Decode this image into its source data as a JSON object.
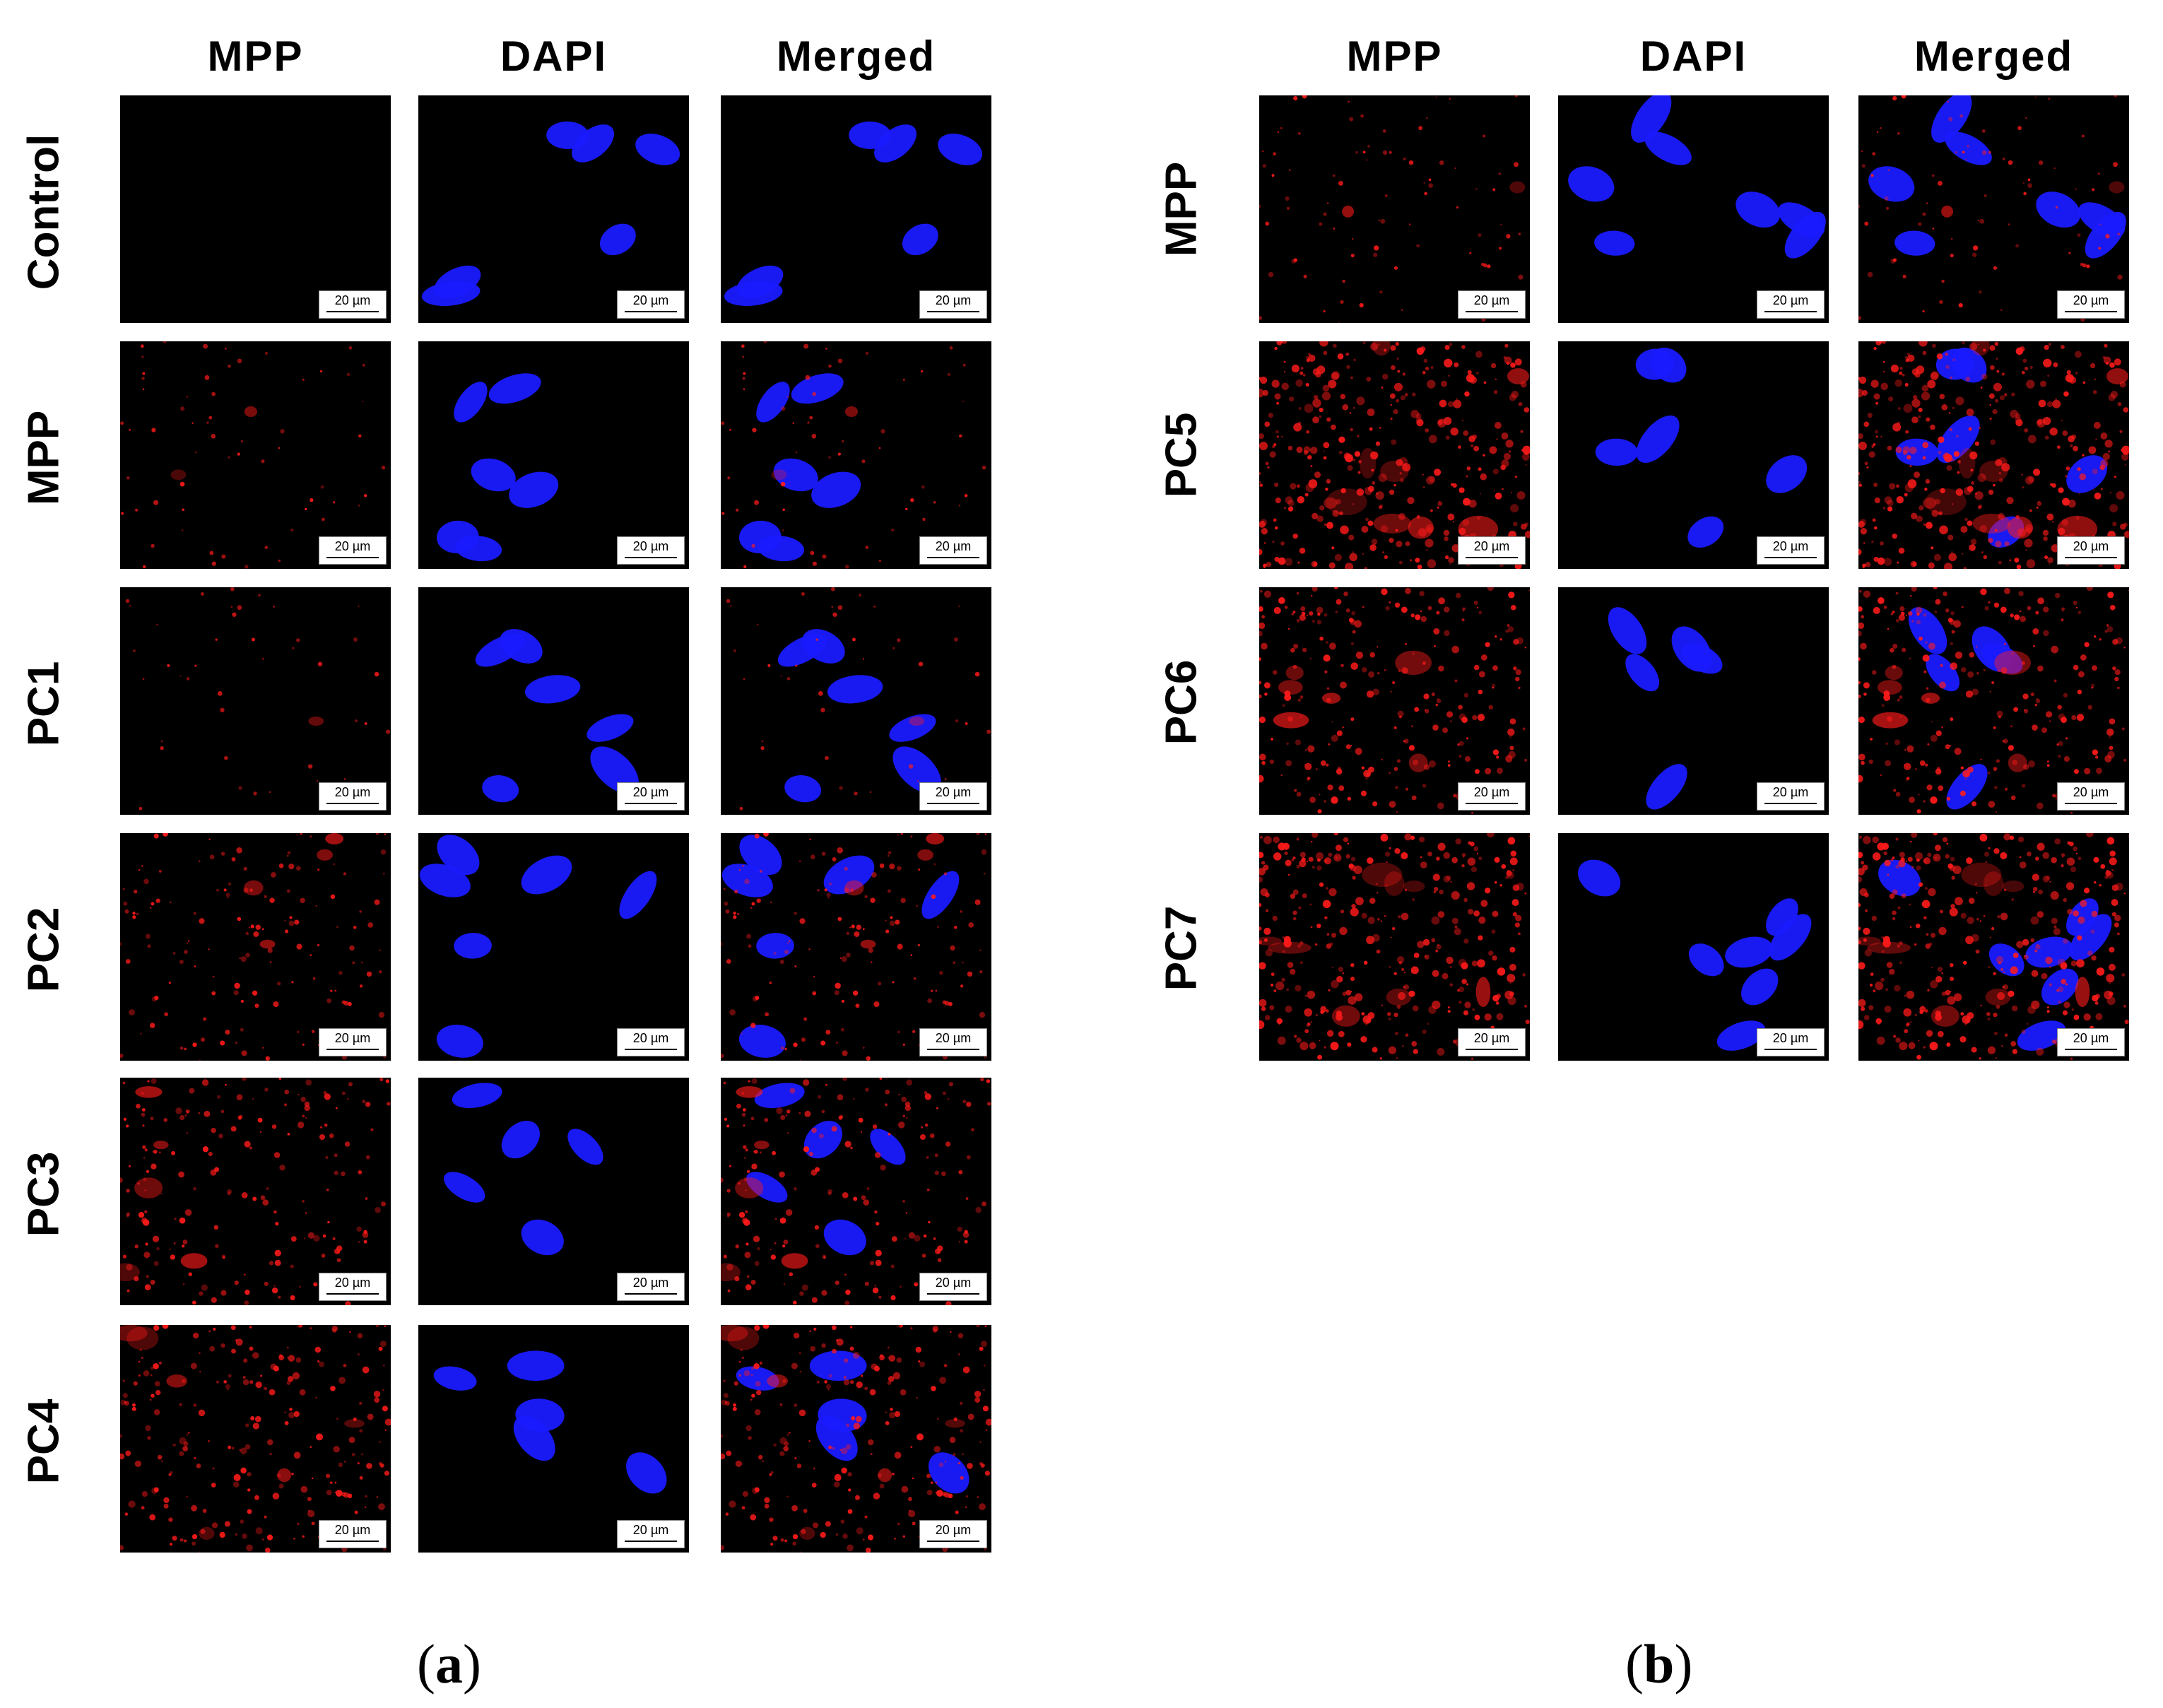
{
  "panel_a": {
    "columns": [
      "MPP",
      "DAPI",
      "Merged"
    ],
    "rows": [
      "Control",
      "MPP",
      "PC1",
      "PC2",
      "PC3",
      "PC4"
    ],
    "label_open": "(",
    "label_letter": "a",
    "label_close": ")"
  },
  "panel_b": {
    "columns": [
      "MPP",
      "DAPI",
      "Merged"
    ],
    "rows": [
      "MPP",
      "PC5",
      "PC6",
      "PC7"
    ],
    "label_open": "(",
    "label_letter": "b",
    "label_close": ")"
  },
  "scale_bar": "20 µm",
  "colors": {
    "background": "#000000",
    "mpp_stain": "#ff1a1a",
    "dapi_stain": "#1a1aff"
  },
  "stain_levels": {
    "panel_a": [
      0,
      0.15,
      0.1,
      0.35,
      0.45,
      0.55
    ],
    "panel_b": [
      0.2,
      0.85,
      0.6,
      0.8
    ]
  }
}
